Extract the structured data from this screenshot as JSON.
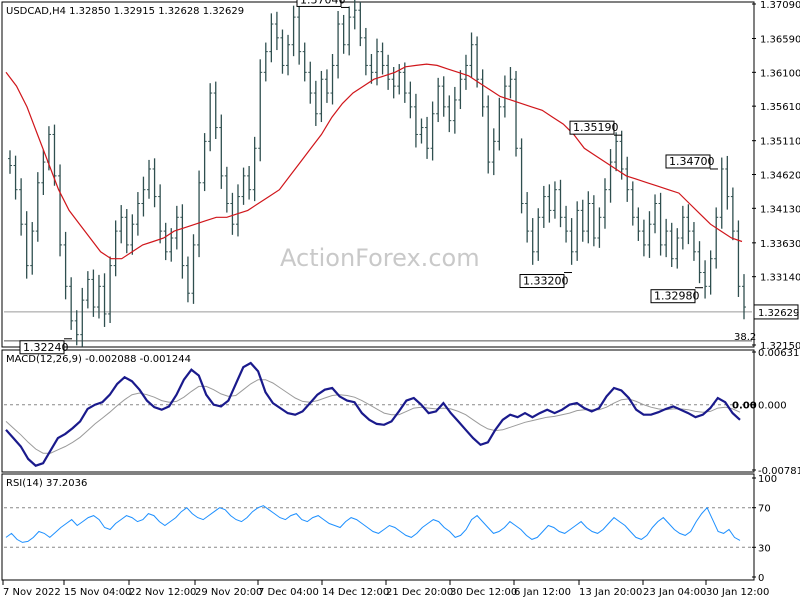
{
  "chart_data": {
    "type": "candlestick",
    "symbol_info": "USDCAD,H4  1.32850 1.32915 1.32628 1.32629",
    "watermark": "ActionForex.com",
    "price_panel": {
      "ylim": [
        1.3215,
        1.3709
      ],
      "y_ticks": [
        "1.37090",
        "1.36590",
        "1.36100",
        "1.35610",
        "1.35110",
        "1.34620",
        "1.34130",
        "1.33630",
        "1.33140",
        "1.32629",
        "1.32150"
      ],
      "current_price": "1.32629",
      "fib_label": "38.2",
      "annotations": [
        {
          "text": "1.37040",
          "value": 1.3704
        },
        {
          "text": "1.35190",
          "value": 1.3519
        },
        {
          "text": "1.34700",
          "value": 1.347
        },
        {
          "text": "1.33200",
          "value": 1.332
        },
        {
          "text": "1.32980",
          "value": 1.3298
        },
        {
          "text": "1.32240",
          "value": 1.3224
        }
      ],
      "close_series": [
        1.3475,
        1.344,
        1.339,
        1.333,
        1.338,
        1.345,
        1.348,
        1.352,
        1.346,
        1.336,
        1.33,
        1.325,
        1.323,
        1.328,
        1.331,
        1.327,
        1.33,
        1.326,
        1.333,
        1.338,
        1.34,
        1.336,
        1.339,
        1.342,
        1.344,
        1.347,
        1.343,
        1.338,
        1.335,
        1.337,
        1.34,
        1.333,
        1.329,
        1.336,
        1.345,
        1.351,
        1.358,
        1.353,
        1.346,
        1.342,
        1.339,
        1.343,
        1.346,
        1.344,
        1.35,
        1.361,
        1.364,
        1.368,
        1.366,
        1.362,
        1.365,
        1.369,
        1.364,
        1.361,
        1.358,
        1.355,
        1.36,
        1.358,
        1.362,
        1.368,
        1.365,
        1.369,
        1.37,
        1.366,
        1.362,
        1.361,
        1.364,
        1.362,
        1.36,
        1.359,
        1.361,
        1.358,
        1.356,
        1.352,
        1.353,
        1.35,
        1.355,
        1.359,
        1.356,
        1.354,
        1.357,
        1.36,
        1.362,
        1.365,
        1.36,
        1.356,
        1.348,
        1.351,
        1.356,
        1.359,
        1.36,
        1.35,
        1.342,
        1.338,
        1.335,
        1.34,
        1.343,
        1.341,
        1.344,
        1.34,
        1.338,
        1.335,
        1.341,
        1.338,
        1.342,
        1.337,
        1.34,
        1.344,
        1.348,
        1.351,
        1.347,
        1.344,
        1.34,
        1.338,
        1.336,
        1.339,
        1.342,
        1.336,
        1.338,
        1.334,
        1.337,
        1.34,
        1.338,
        1.335,
        1.332,
        1.33,
        1.334,
        1.34,
        1.347,
        1.343,
        1.338,
        1.33,
        1.327
      ],
      "ma_series": [
        1.361,
        1.359,
        1.356,
        1.352,
        1.348,
        1.344,
        1.341,
        1.339,
        1.337,
        1.335,
        1.334,
        1.334,
        1.335,
        1.336,
        1.3365,
        1.337,
        1.338,
        1.3385,
        1.339,
        1.3395,
        1.34,
        1.34,
        1.3405,
        1.341,
        1.342,
        1.343,
        1.344,
        1.346,
        1.348,
        1.35,
        1.352,
        1.3545,
        1.3565,
        1.358,
        1.359,
        1.36,
        1.3605,
        1.361,
        1.3618,
        1.362,
        1.3622,
        1.362,
        1.3615,
        1.361,
        1.3605,
        1.3595,
        1.3585,
        1.3575,
        1.357,
        1.3565,
        1.356,
        1.3555,
        1.3545,
        1.3535,
        1.352,
        1.35,
        1.349,
        1.348,
        1.347,
        1.346,
        1.3455,
        1.345,
        1.3445,
        1.344,
        1.3435,
        1.342,
        1.3405,
        1.339,
        1.338,
        1.337,
        1.3365
      ],
      "ma_color": "#d0161b",
      "bar_color": "#2f4f4f"
    },
    "macd_panel": {
      "label": "MACD(12,26,9) -0.002088 -0.001244",
      "ylim": [
        -0.007818,
        0.006315
      ],
      "y_ticks": [
        "0.006315",
        "0.000",
        "-0.007818"
      ],
      "current_marker": "0.00",
      "macd_series": [
        -0.003,
        -0.004,
        -0.005,
        -0.0065,
        -0.0073,
        -0.007,
        -0.0055,
        -0.004,
        -0.0035,
        -0.0028,
        -0.002,
        -0.0005,
        0.0,
        0.0003,
        0.0012,
        0.0025,
        0.0033,
        0.0028,
        0.0018,
        0.0005,
        -0.0003,
        -0.0006,
        -0.0002,
        0.0012,
        0.003,
        0.0042,
        0.0035,
        0.0012,
        0.0,
        -0.0002,
        0.0005,
        0.0025,
        0.0045,
        0.005,
        0.004,
        0.0015,
        0.0002,
        -0.0004,
        -0.001,
        -0.0012,
        -0.0008,
        0.0002,
        0.0012,
        0.0018,
        0.002,
        0.001,
        0.0005,
        0.0003,
        -0.001,
        -0.0018,
        -0.0023,
        -0.0024,
        -0.002,
        -0.0008,
        0.0005,
        0.0008,
        0.0,
        -0.001,
        -0.0008,
        0.0002,
        -0.001,
        -0.002,
        -0.003,
        -0.004,
        -0.0048,
        -0.0045,
        -0.003,
        -0.0018,
        -0.0012,
        -0.0015,
        -0.001,
        -0.0015,
        -0.001,
        -0.0006,
        -0.001,
        -0.0006,
        0.0,
        0.0002,
        -0.0004,
        -0.0008,
        -0.0004,
        0.001,
        0.002,
        0.0017,
        0.0008,
        -0.0006,
        -0.0012,
        -0.0012,
        -0.0009,
        -0.0005,
        -0.0002,
        -0.0006,
        -0.001,
        -0.0015,
        -0.0012,
        -0.0004,
        0.0008,
        0.0003,
        -0.001,
        -0.0018
      ],
      "signal_series": [
        -0.002,
        -0.0028,
        -0.0036,
        -0.0045,
        -0.0053,
        -0.0058,
        -0.0058,
        -0.0054,
        -0.005,
        -0.0045,
        -0.0039,
        -0.0031,
        -0.0023,
        -0.0016,
        -0.0009,
        -0.0001,
        0.0006,
        0.0012,
        0.0014,
        0.0012,
        0.0009,
        0.0005,
        0.0003,
        0.0004,
        0.0009,
        0.0016,
        0.0022,
        0.0022,
        0.0018,
        0.0013,
        0.001,
        0.0011,
        0.0018,
        0.0025,
        0.003,
        0.003,
        0.0026,
        0.002,
        0.0014,
        0.0008,
        0.0004,
        0.0003,
        0.0005,
        0.0008,
        0.0011,
        0.0012,
        0.0011,
        0.0009,
        0.0005,
        0.0,
        -0.0005,
        -0.001,
        -0.0012,
        -0.0012,
        -0.0008,
        -0.0004,
        -0.0003,
        -0.0004,
        -0.0005,
        -0.0004,
        -0.0005,
        -0.0008,
        -0.0012,
        -0.0018,
        -0.0024,
        -0.0029,
        -0.0031,
        -0.003,
        -0.0027,
        -0.0024,
        -0.0021,
        -0.0019,
        -0.0017,
        -0.0015,
        -0.0014,
        -0.0012,
        -0.001,
        -0.0007,
        -0.0006,
        -0.0006,
        -0.0006,
        -0.0003,
        0.0002,
        0.0006,
        0.0007,
        0.0004,
        0.0,
        -0.0003,
        -0.0005,
        -0.0006,
        -0.0005,
        -0.0005,
        -0.0006,
        -0.0008,
        -0.0009,
        -0.0008,
        -0.0004,
        -0.0003,
        -0.0005,
        -0.0009
      ],
      "macd_color": "#1a1a8c",
      "signal_color": "#9b9b9b"
    },
    "rsi_panel": {
      "label": "RSI(14) 37.2036",
      "ylim": [
        0,
        100
      ],
      "y_ticks": [
        "100",
        "70",
        "30",
        "0"
      ],
      "levels": [
        70,
        30
      ],
      "rsi_series": [
        40,
        44,
        38,
        35,
        36,
        40,
        46,
        44,
        40,
        45,
        50,
        54,
        58,
        52,
        56,
        60,
        62,
        58,
        50,
        48,
        54,
        58,
        62,
        60,
        56,
        58,
        64,
        62,
        56,
        52,
        56,
        60,
        66,
        70,
        64,
        60,
        58,
        62,
        66,
        70,
        68,
        62,
        58,
        56,
        60,
        66,
        70,
        72,
        68,
        64,
        60,
        58,
        62,
        64,
        58,
        56,
        60,
        62,
        58,
        54,
        52,
        50,
        56,
        60,
        58,
        54,
        50,
        46,
        44,
        48,
        52,
        50,
        46,
        42,
        40,
        44,
        50,
        54,
        58,
        56,
        50,
        46,
        40,
        42,
        48,
        58,
        62,
        56,
        50,
        44,
        46,
        50,
        56,
        52,
        48,
        42,
        38,
        40,
        46,
        52,
        50,
        46,
        44,
        48,
        52,
        56,
        50,
        46,
        44,
        48,
        54,
        60,
        56,
        52,
        46,
        40,
        38,
        42,
        50,
        56,
        60,
        54,
        48,
        44,
        42,
        46,
        56,
        64,
        70,
        58,
        46,
        44,
        48,
        40,
        37
      ]
    },
    "x_tick_labels": [
      "7 Nov 2022",
      "15 Nov 04:00",
      "22 Nov 12:00",
      "29 Nov 20:00",
      "7 Dec 04:00",
      "14 Dec 12:00",
      "21 Dec 20:00",
      "30 Dec 12:00",
      "6 Jan 12:00",
      "13 Jan 20:00",
      "23 Jan 04:00",
      "30 Jan 12:00"
    ]
  }
}
